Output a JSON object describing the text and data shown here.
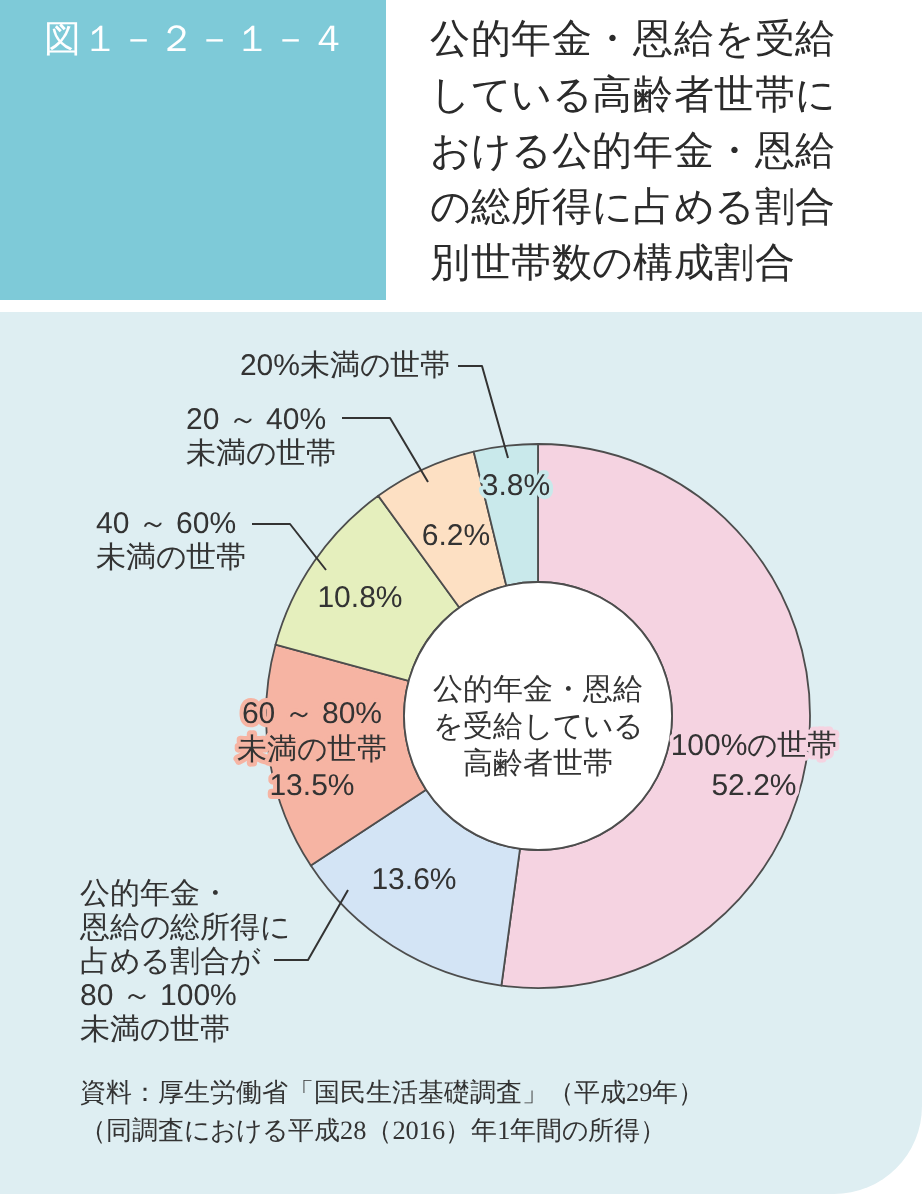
{
  "chart_data": {
    "type": "donut",
    "title": "公的年金・恩給を受給している高齢者世帯における公的年金・恩給の総所得に占める割合別世帯数の構成割合",
    "categories": [
      "100%の世帯",
      "公的年金・恩給の総所得に占める割合が80 ～ 100%未満の世帯",
      "60 ～ 80%未満の世帯",
      "40 ～ 60%未満の世帯",
      "20 ～ 40%未満の世帯",
      "20%未満の世帯"
    ],
    "values": [
      52.2,
      13.6,
      13.5,
      10.8,
      6.2,
      3.8
    ],
    "colors": [
      "#f5d3e1",
      "#d3e4f5",
      "#f6b4a3",
      "#e5efbd",
      "#fde0c3",
      "#c9e9eb"
    ],
    "value_labels": [
      "52.2%",
      "13.6%",
      "13.5%",
      "10.8%",
      "6.2%",
      "3.8%"
    ],
    "annotations": [
      "図１－２－１－４",
      "公的年金・恩給を受給している高齢者世帯",
      "資料：厚生労働省「国民生活基礎調査」（平成29年）",
      "（同調査における平成28（2016）年1年間の所得）"
    ]
  }
}
